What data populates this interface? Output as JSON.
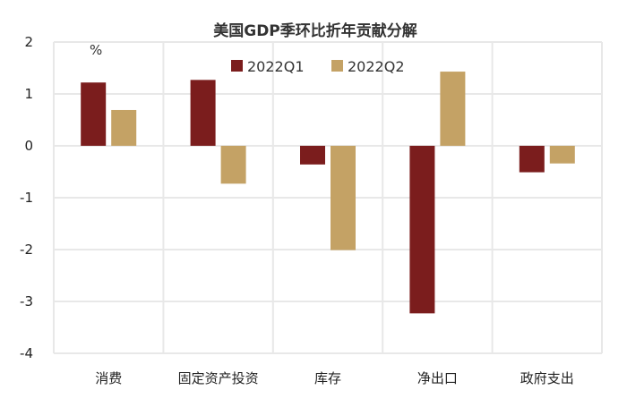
{
  "chart_data": {
    "type": "bar",
    "title": "美国GDP季环比折年贡献分解",
    "unit_label": "%",
    "categories": [
      "消费",
      "固定资产投资",
      "库存",
      "净出口",
      "政府支出"
    ],
    "series": [
      {
        "name": "2022Q1",
        "values": [
          1.22,
          1.27,
          -0.36,
          -3.23,
          -0.51
        ],
        "color": "#7b1d1d"
      },
      {
        "name": "2022Q2",
        "values": [
          0.69,
          -0.73,
          -2.01,
          1.43,
          -0.34
        ],
        "color": "#c4a265"
      }
    ],
    "ylim": [
      -4,
      2
    ],
    "yticks": [
      2,
      1,
      0,
      -1,
      -2,
      -3,
      -4
    ],
    "grid": true,
    "legend_position": "top-center",
    "xlabel": "",
    "ylabel": ""
  }
}
